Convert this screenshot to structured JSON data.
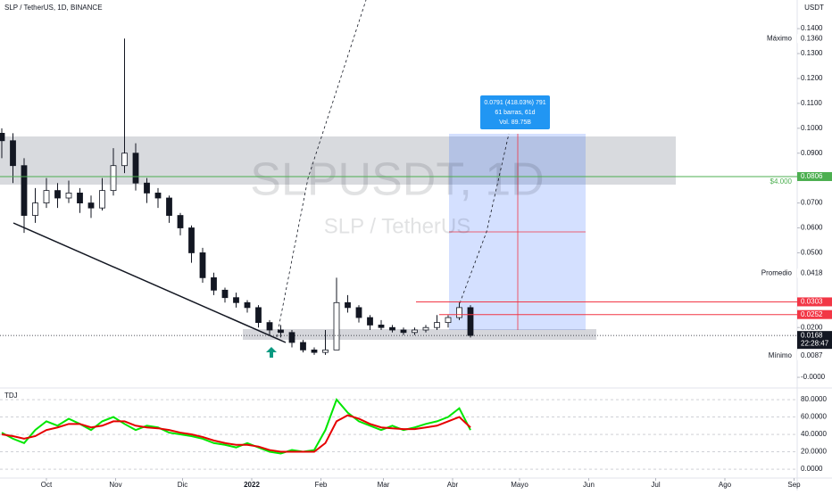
{
  "header": {
    "title": "SLP / TetherUS, 1D, BINANCE",
    "currency": "USDT"
  },
  "watermark": {
    "symbol": "SLPUSDT, 1D",
    "name": "SLP / TetherUS"
  },
  "measure": {
    "line1": "0.0791 (418.03%) 791",
    "line2": "61 barras, 61d",
    "line3": "Vol. 89.75B"
  },
  "chart_data": {
    "type": "candlestick",
    "x": [
      -20,
      -15,
      -10,
      -5,
      0,
      5,
      10,
      15,
      20,
      25,
      30,
      35,
      40,
      45,
      50,
      55,
      60,
      65,
      70,
      75,
      80,
      85,
      90,
      95,
      100,
      105,
      110,
      115,
      120,
      125,
      130,
      135,
      140,
      145,
      150,
      155,
      160,
      165,
      170,
      175,
      180,
      185,
      190
    ],
    "open": [
      0.098,
      0.095,
      0.085,
      0.065,
      0.07,
      0.075,
      0.072,
      0.074,
      0.07,
      0.068,
      0.075,
      0.085,
      0.09,
      0.078,
      0.074,
      0.072,
      0.065,
      0.06,
      0.05,
      0.04,
      0.035,
      0.032,
      0.03,
      0.028,
      0.022,
      0.019,
      0.018,
      0.014,
      0.011,
      0.01,
      0.011,
      0.03,
      0.028,
      0.024,
      0.021,
      0.02,
      0.019,
      0.018,
      0.019,
      0.02,
      0.022,
      0.024,
      0.028
    ],
    "high": [
      0.1,
      0.098,
      0.088,
      0.076,
      0.08,
      0.078,
      0.079,
      0.076,
      0.073,
      0.08,
      0.092,
      0.136,
      0.094,
      0.08,
      0.076,
      0.073,
      0.066,
      0.061,
      0.052,
      0.042,
      0.036,
      0.034,
      0.031,
      0.029,
      0.023,
      0.021,
      0.019,
      0.015,
      0.012,
      0.019,
      0.04,
      0.033,
      0.029,
      0.025,
      0.023,
      0.021,
      0.02,
      0.02,
      0.021,
      0.025,
      0.025,
      0.03,
      0.029
    ],
    "low": [
      0.088,
      0.078,
      0.058,
      0.062,
      0.068,
      0.068,
      0.07,
      0.066,
      0.064,
      0.067,
      0.073,
      0.082,
      0.075,
      0.07,
      0.068,
      0.062,
      0.057,
      0.046,
      0.038,
      0.033,
      0.03,
      0.028,
      0.026,
      0.02,
      0.017,
      0.016,
      0.012,
      0.01,
      0.009,
      0.009,
      0.011,
      0.026,
      0.022,
      0.019,
      0.019,
      0.018,
      0.017,
      0.017,
      0.018,
      0.019,
      0.02,
      0.023,
      0.016
    ],
    "close": [
      0.095,
      0.085,
      0.065,
      0.07,
      0.075,
      0.072,
      0.074,
      0.07,
      0.068,
      0.075,
      0.085,
      0.09,
      0.078,
      0.074,
      0.072,
      0.065,
      0.06,
      0.05,
      0.04,
      0.035,
      0.032,
      0.03,
      0.028,
      0.022,
      0.019,
      0.018,
      0.014,
      0.011,
      0.01,
      0.011,
      0.03,
      0.028,
      0.024,
      0.021,
      0.02,
      0.019,
      0.018,
      0.019,
      0.02,
      0.022,
      0.024,
      0.028,
      0.0168
    ],
    "up_color": "#26a69a",
    "down_color": "#ef5350",
    "candle_color": "#131722",
    "xlim": [
      -20.8,
      336.4
    ],
    "xticks": [
      {
        "value": 0,
        "label": "Oct"
      },
      {
        "value": 31,
        "label": "Nov"
      },
      {
        "value": 61,
        "label": "Dic"
      },
      {
        "value": 92,
        "label": "2022"
      },
      {
        "value": 123,
        "label": "Feb"
      },
      {
        "value": 151,
        "label": "Mar"
      },
      {
        "value": 182,
        "label": "Abr"
      },
      {
        "value": 212,
        "label": "Mayo"
      },
      {
        "value": 243,
        "label": "Jun"
      },
      {
        "value": 273,
        "label": "Jul"
      },
      {
        "value": 304,
        "label": "Ago"
      },
      {
        "value": 335,
        "label": "Sep"
      }
    ],
    "ylim": [
      -0.0032,
      0.1515
    ],
    "yticks": [
      {
        "value": 0.14,
        "label": "0.1400"
      },
      {
        "value": 0.13,
        "label": "0.1300"
      },
      {
        "value": 0.12,
        "label": "0.1200"
      },
      {
        "value": 0.11,
        "label": "0.1100"
      },
      {
        "value": 0.1,
        "label": "0.1000"
      },
      {
        "value": 0.09,
        "label": "0.0900"
      },
      {
        "value": 0.07,
        "label": "0.0700"
      },
      {
        "value": 0.06,
        "label": "0.0600"
      },
      {
        "value": 0.05,
        "label": "0.0500"
      },
      {
        "value": 0.02,
        "label": "0.0200"
      },
      {
        "value": 0,
        "label": "-0.0000"
      }
    ],
    "markers": [
      {
        "name": "Máximo",
        "value": 0.136,
        "value_label": "0.1360",
        "color": "#ffffff",
        "text_color": "#131722",
        "line": "none"
      },
      {
        "name": "$4.000",
        "value": 0.0806,
        "value_label": "0.0806",
        "color": "#4caf50",
        "text_color": "#ffffff",
        "line": "solid"
      },
      {
        "name": "Promedio",
        "value": 0.0418,
        "value_label": "0.0418",
        "color": "#ffffff",
        "text_color": "#131722",
        "line": "none"
      },
      {
        "value": 0.0303,
        "value_label": "0.0303",
        "color": "#f23645",
        "text_color": "#ffffff",
        "line": "solid"
      },
      {
        "value": 0.0252,
        "value_label": "0.0252",
        "color": "#f23645",
        "text_color": "#ffffff",
        "line": "solid"
      },
      {
        "value": 0.0168,
        "value_label": "0.0168",
        "countdown": "22:28:47",
        "color": "#131722",
        "text_color": "#ffffff",
        "line": "dotted"
      },
      {
        "name": "Mínimo",
        "value": 0.0087,
        "value_label": "0.0087",
        "color": "#ffffff",
        "text_color": "#131722",
        "line": "none"
      }
    ],
    "indicator": {
      "title": "TDJ",
      "ylim": [
        -9.2,
        91.3
      ],
      "yticks": [
        {
          "value": 80,
          "label": "80.0000"
        },
        {
          "value": 60,
          "label": "60.0000"
        },
        {
          "value": 40,
          "label": "40.0000"
        },
        {
          "value": 20,
          "label": "20.0000"
        },
        {
          "value": 0,
          "label": "0.0000"
        }
      ],
      "series": [
        {
          "color": "#00e600",
          "values": [
            42,
            35,
            30,
            45,
            55,
            50,
            58,
            52,
            45,
            55,
            60,
            52,
            45,
            50,
            48,
            42,
            40,
            38,
            35,
            30,
            28,
            25,
            30,
            25,
            20,
            18,
            22,
            20,
            22,
            45,
            80,
            65,
            55,
            50,
            45,
            50,
            45,
            48,
            52,
            55,
            60,
            70,
            45
          ]
        },
        {
          "color": "#e60000",
          "values": [
            40,
            38,
            35,
            38,
            45,
            48,
            52,
            52,
            48,
            50,
            55,
            55,
            50,
            48,
            47,
            45,
            42,
            40,
            37,
            33,
            30,
            28,
            28,
            26,
            22,
            20,
            20,
            20,
            20,
            30,
            55,
            62,
            58,
            52,
            48,
            47,
            46,
            46,
            48,
            50,
            55,
            60,
            48
          ]
        }
      ]
    }
  }
}
